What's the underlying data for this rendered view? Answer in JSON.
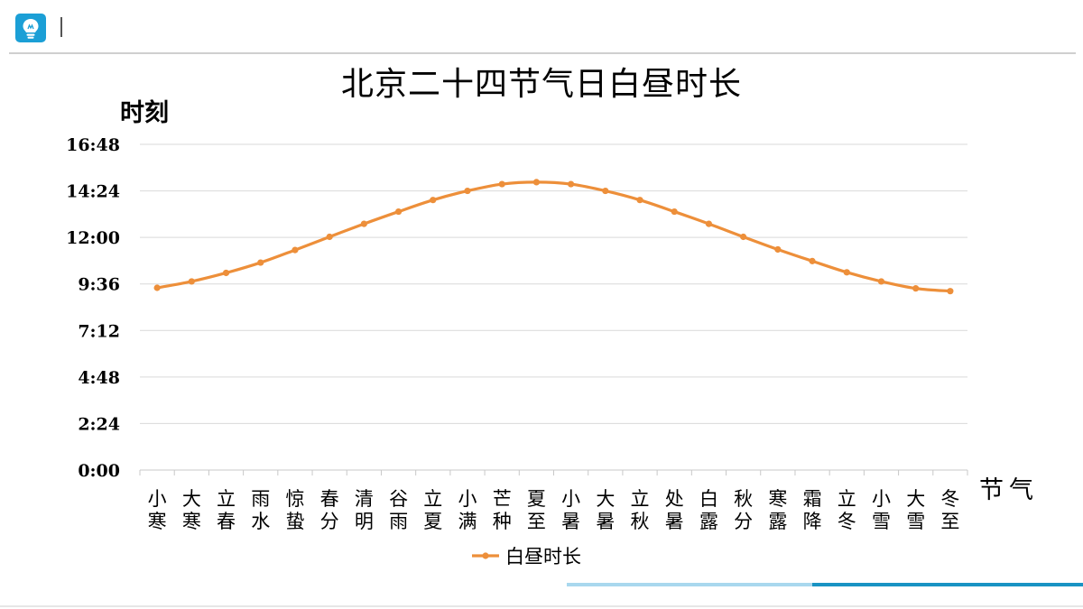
{
  "header": {
    "icon": "lightbulb-icon",
    "accent": "#1b9fd6"
  },
  "chart_data": {
    "type": "line",
    "title": "北京二十四节气日白昼时长",
    "ylabel": "时刻",
    "xlabel": "节气",
    "y_unit": "hours",
    "ylim": [
      0,
      16.8
    ],
    "yticks": [
      {
        "value": 0,
        "label": "0:00"
      },
      {
        "value": 2.4,
        "label": "2:24"
      },
      {
        "value": 4.8,
        "label": "4:48"
      },
      {
        "value": 7.2,
        "label": "7:12"
      },
      {
        "value": 9.6,
        "label": "9:36"
      },
      {
        "value": 12,
        "label": "12:00"
      },
      {
        "value": 14.4,
        "label": "14:24"
      },
      {
        "value": 16.8,
        "label": "16:48"
      }
    ],
    "grid": true,
    "legend_position": "bottom",
    "categories": [
      "小寒",
      "大寒",
      "立春",
      "雨水",
      "惊蛰",
      "春分",
      "清明",
      "谷雨",
      "立夏",
      "小满",
      "芒种",
      "夏至",
      "小暑",
      "大暑",
      "立秋",
      "处暑",
      "白露",
      "秋分",
      "寒露",
      "霜降",
      "立冬",
      "小雪",
      "大雪",
      "冬至"
    ],
    "series": [
      {
        "name": "白昼时长",
        "color": "#ed8f3a",
        "values": [
          9.4,
          9.73,
          10.17,
          10.7,
          11.35,
          12.03,
          12.7,
          13.33,
          13.93,
          14.4,
          14.75,
          14.85,
          14.75,
          14.4,
          13.93,
          13.33,
          12.7,
          12.03,
          11.38,
          10.78,
          10.2,
          9.73,
          9.37,
          9.23
        ]
      }
    ]
  }
}
